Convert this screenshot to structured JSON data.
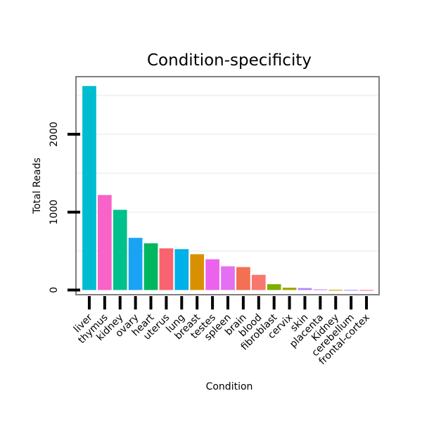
{
  "chart_data": {
    "type": "bar",
    "title": "Condition-specificity",
    "xlabel": "Condition",
    "ylabel": "Total Reads",
    "ylim": [
      -60,
      2740
    ],
    "yticks": [
      0,
      1000,
      2000
    ],
    "grid": true,
    "categories": [
      "liver",
      "thymus",
      "kidney",
      "ovary",
      "heart",
      "uterus",
      "lung",
      "breast",
      "testes",
      "spleen",
      "brain",
      "blood",
      "fibroblast",
      "cervix",
      "skin",
      "placenta",
      "Kidney",
      "cerebellum",
      "frontal-cortex"
    ],
    "values": [
      2620,
      1220,
      1030,
      670,
      600,
      535,
      525,
      460,
      395,
      305,
      295,
      195,
      75,
      30,
      25,
      8,
      3,
      2,
      1
    ],
    "colors": [
      "#00bcd0",
      "#f763c8",
      "#00c08c",
      "#1aa3f5",
      "#00b760",
      "#f8636f",
      "#00b0e8",
      "#d89000",
      "#eb63ec",
      "#e46ff2",
      "#f37052",
      "#f8766d",
      "#7caf00",
      "#a3a500",
      "#b583ff",
      "#c17dff",
      "#c99800",
      "#9f8cff",
      "#ff6c91"
    ]
  }
}
